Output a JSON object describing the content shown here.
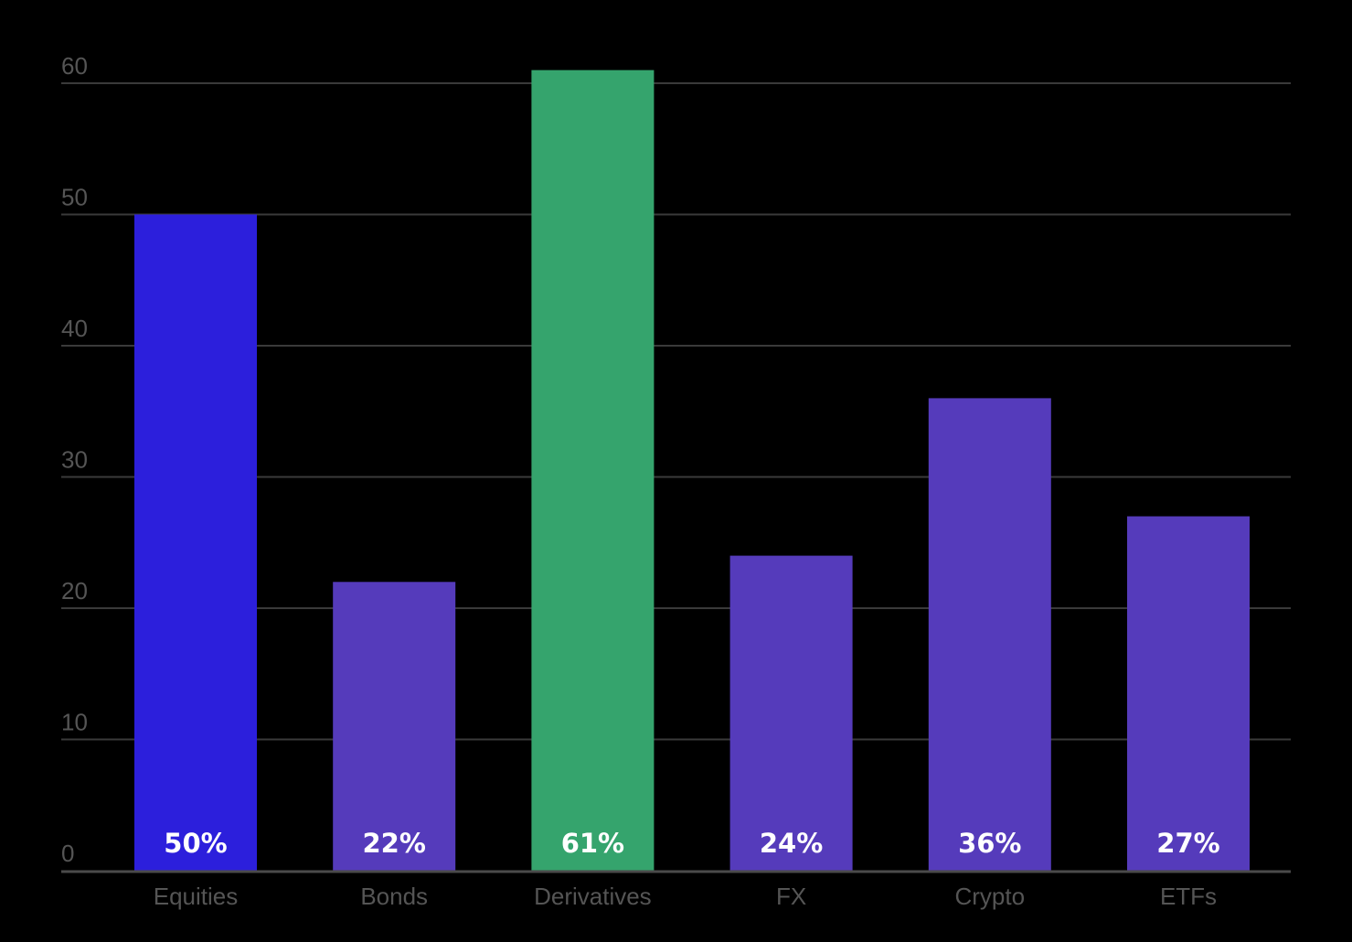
{
  "chart_data": {
    "type": "bar",
    "categories": [
      "Equities",
      "Bonds",
      "Derivatives",
      "FX",
      "Crypto",
      "ETFs"
    ],
    "values": [
      50,
      22,
      61,
      24,
      36,
      27
    ],
    "data_labels": [
      "50%",
      "22%",
      "61%",
      "24%",
      "36%",
      "27%"
    ],
    "ylim": [
      0,
      60
    ],
    "yticks": [
      0,
      10,
      20,
      30,
      40,
      50,
      60
    ],
    "grid": true,
    "title": "",
    "xlabel": "",
    "ylabel": ""
  },
  "colors": {
    "background": "#000000",
    "grid": "#3a3a3a",
    "axis": "#4a4a4a",
    "tick_text": "#555555",
    "data_label_text": "#ffffff",
    "bars": [
      "#2c1fdc",
      "#553bbb",
      "#35a46d",
      "#553bbb",
      "#553bbb",
      "#553bbb"
    ]
  }
}
